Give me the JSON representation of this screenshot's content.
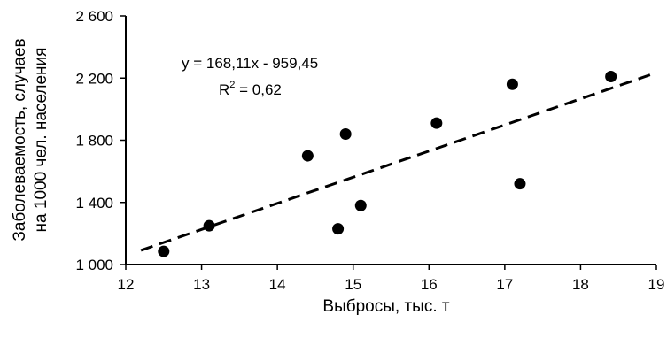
{
  "chart_data": {
    "type": "scatter",
    "xlabel": "Выбросы, тыс. т",
    "ylabel_line1": "Заболеваемость, случаев",
    "ylabel_line2": "на 1000 чел. населения",
    "xlim": [
      12,
      19
    ],
    "ylim": [
      1000,
      2600
    ],
    "xticks": [
      "12",
      "13",
      "14",
      "15",
      "16",
      "17",
      "18",
      "19"
    ],
    "yticks": [
      "1 000",
      "1 400",
      "1 800",
      "2 200",
      "2 600"
    ],
    "points": [
      {
        "x": 12.5,
        "y": 1085
      },
      {
        "x": 13.1,
        "y": 1250
      },
      {
        "x": 14.4,
        "y": 1700
      },
      {
        "x": 14.8,
        "y": 1230
      },
      {
        "x": 14.9,
        "y": 1840
      },
      {
        "x": 15.1,
        "y": 1380
      },
      {
        "x": 16.1,
        "y": 1910
      },
      {
        "x": 17.1,
        "y": 2160
      },
      {
        "x": 17.2,
        "y": 1520
      },
      {
        "x": 18.4,
        "y": 2210
      }
    ],
    "trendline": {
      "slope": 168.11,
      "intercept": -959.45,
      "x_range": [
        12.2,
        19
      ]
    },
    "equation_text": "y = 168,11x - 959,45",
    "r2_label": "R",
    "r2_sup": "2",
    "r2_value": " = 0,62",
    "grid": false,
    "colors": {
      "marker": "#000000",
      "line": "#000000"
    }
  }
}
